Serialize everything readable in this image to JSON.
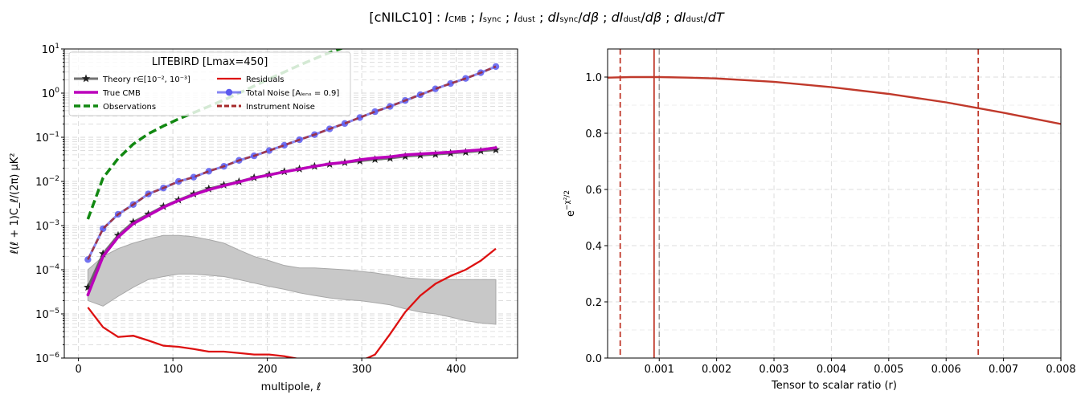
{
  "figure": {
    "suptitle": "[cNILC10] : I_CMB ; I_sync ; I_dust ; dI_sync/dβ ; dI_dust/dβ ; dI_dust/dT"
  },
  "chart_data": [
    {
      "type": "line",
      "yscale": "log",
      "xlabel": "multipole, ℓ",
      "ylabel": "ℓ(ℓ + 1)C_ℓ/(2π) μK²",
      "xlim": [
        -15,
        465
      ],
      "ylim": [
        1e-06,
        10
      ],
      "x_ticks": [
        0,
        100,
        200,
        300,
        400
      ],
      "y_tick_labels": [
        "10^-6",
        "10^-5",
        "10^-4",
        "10^-3",
        "10^-2",
        "10^-1",
        "10^0",
        "10^1"
      ],
      "grid": true,
      "legend": {
        "title": "LITEBIRD [Lmax=450]",
        "placement": "upper-left",
        "columns": 2
      },
      "series": [
        {
          "name": "Observations",
          "color": "#118811",
          "style": "dashed",
          "x": [
            10,
            26,
            42,
            58,
            74,
            90,
            106,
            122,
            138,
            154,
            170,
            186,
            202,
            218,
            234,
            250,
            266,
            282,
            290
          ],
          "y": [
            0.0014,
            0.012,
            0.033,
            0.07,
            0.12,
            0.18,
            0.26,
            0.36,
            0.5,
            0.7,
            1.0,
            1.45,
            2.1,
            3.0,
            4.3,
            6.0,
            8.3,
            11,
            12
          ]
        },
        {
          "name": "Total Noise [A_lens = 0.9]",
          "color": "#5555ee",
          "style": "solid-marker",
          "x": [
            10,
            26,
            42,
            58,
            74,
            90,
            106,
            122,
            138,
            154,
            170,
            186,
            202,
            218,
            234,
            250,
            266,
            282,
            298,
            314,
            330,
            346,
            362,
            378,
            394,
            410,
            426,
            442
          ],
          "y": [
            0.00017,
            0.00085,
            0.0018,
            0.003,
            0.0052,
            0.0071,
            0.01,
            0.0125,
            0.017,
            0.022,
            0.03,
            0.038,
            0.05,
            0.066,
            0.088,
            0.115,
            0.155,
            0.205,
            0.28,
            0.38,
            0.5,
            0.68,
            0.92,
            1.25,
            1.65,
            2.15,
            2.9,
            4.0
          ]
        },
        {
          "name": "Instrument Noise",
          "color": "#a52a2a",
          "style": "dashed",
          "x": [
            10,
            26,
            42,
            58,
            74,
            90,
            106,
            122,
            138,
            154,
            170,
            186,
            202,
            218,
            234,
            250,
            266,
            282,
            298,
            314,
            330,
            346,
            362,
            378,
            394,
            410,
            426,
            442
          ],
          "y": [
            0.00017,
            0.00085,
            0.0018,
            0.003,
            0.0052,
            0.0071,
            0.01,
            0.0125,
            0.017,
            0.022,
            0.03,
            0.038,
            0.05,
            0.066,
            0.088,
            0.115,
            0.155,
            0.205,
            0.28,
            0.38,
            0.5,
            0.68,
            0.92,
            1.25,
            1.65,
            2.15,
            2.9,
            4.0
          ]
        },
        {
          "name": "True CMB",
          "color": "#bb00bb",
          "style": "solid-thick",
          "x": [
            10,
            26,
            42,
            58,
            74,
            90,
            106,
            122,
            138,
            154,
            170,
            186,
            202,
            218,
            234,
            250,
            266,
            282,
            298,
            314,
            330,
            346,
            362,
            378,
            394,
            410,
            426,
            442
          ],
          "y": [
            2.7e-05,
            0.0002,
            0.00055,
            0.0011,
            0.0017,
            0.0026,
            0.0037,
            0.005,
            0.0065,
            0.008,
            0.0097,
            0.012,
            0.014,
            0.0165,
            0.019,
            0.022,
            0.025,
            0.027,
            0.031,
            0.034,
            0.036,
            0.04,
            0.042,
            0.044,
            0.046,
            0.049,
            0.052,
            0.058
          ]
        },
        {
          "name": "Theory r∈[10^-2, 10^-3]",
          "color": "#222222",
          "style": "star-marker",
          "x": [
            10,
            26,
            42,
            58,
            74,
            90,
            106,
            122,
            138,
            154,
            170,
            186,
            202,
            218,
            234,
            250,
            266,
            282,
            298,
            314,
            330,
            346,
            362,
            378,
            394,
            410,
            426,
            442
          ],
          "y": [
            4e-05,
            0.00023,
            0.0006,
            0.0012,
            0.0018,
            0.0027,
            0.0038,
            0.0052,
            0.0068,
            0.0083,
            0.0099,
            0.0122,
            0.0142,
            0.0167,
            0.0192,
            0.022,
            0.0245,
            0.0268,
            0.029,
            0.0315,
            0.0335,
            0.037,
            0.039,
            0.041,
            0.0435,
            0.046,
            0.049,
            0.052
          ]
        },
        {
          "name": "Residuals",
          "color": "#dd1111",
          "style": "solid",
          "x": [
            10,
            26,
            42,
            58,
            74,
            90,
            106,
            122,
            138,
            154,
            170,
            186,
            202,
            218,
            234,
            240,
            260,
            280,
            300,
            306,
            314,
            330,
            346,
            362,
            378,
            394,
            410,
            426,
            442
          ],
          "y": [
            1.4e-05,
            5e-06,
            3e-06,
            3.2e-06,
            2.5e-06,
            1.9e-06,
            1.8e-06,
            1.6e-06,
            1.4e-06,
            1.4e-06,
            1.3e-06,
            1.2e-06,
            1.2e-06,
            1.1e-06,
            9.5e-07,
            9e-07,
            8e-07,
            8e-07,
            9e-07,
            1e-06,
            1.2e-06,
            3.5e-06,
            1.1e-05,
            2.6e-05,
            4.8e-05,
            7.2e-05,
            0.0001,
            0.00016,
            0.0003
          ]
        }
      ],
      "band": {
        "color": "#c8c8c8",
        "x": [
          10,
          26,
          42,
          58,
          74,
          90,
          106,
          122,
          138,
          154,
          170,
          186,
          202,
          218,
          234,
          250,
          266,
          282,
          298,
          314,
          330,
          346,
          362,
          378,
          394,
          410,
          426,
          442
        ],
        "upper": [
          0.0001,
          0.0002,
          0.0003,
          0.0004,
          0.0005,
          0.0006,
          0.0006,
          0.00056,
          0.00048,
          0.0004,
          0.00028,
          0.0002,
          0.00016,
          0.000125,
          0.00011,
          0.00011,
          0.000105,
          0.0001,
          9.2e-05,
          8.5e-05,
          7.5e-05,
          6.6e-05,
          6.2e-05,
          6e-05,
          6e-05,
          6e-05,
          6e-05,
          6e-05
        ],
        "lower": [
          2e-05,
          1.5e-05,
          2.5e-05,
          4e-05,
          6e-05,
          7e-05,
          8e-05,
          8e-05,
          7.5e-05,
          7e-05,
          6e-05,
          5e-05,
          4.2e-05,
          3.6e-05,
          3e-05,
          2.6e-05,
          2.3e-05,
          2.1e-05,
          2e-05,
          1.8e-05,
          1.6e-05,
          1.3e-05,
          1.1e-05,
          1e-05,
          8.5e-06,
          7e-06,
          6.2e-06,
          5.8e-06
        ]
      }
    },
    {
      "type": "line",
      "xlabel": "Tensor to scalar ratio (r)",
      "ylabel": "e^{-χ²/2}",
      "xlim": [
        0.0001,
        0.008
      ],
      "ylim": [
        0.0,
        1.1
      ],
      "x_ticks": [
        "0.001",
        "0.002",
        "0.003",
        "0.004",
        "0.005",
        "0.006",
        "0.007",
        "0.008"
      ],
      "y_ticks": [
        "0.0",
        "0.2",
        "0.4",
        "0.6",
        "0.8",
        "1.0"
      ],
      "grid": true,
      "series": [
        {
          "color": "#c0392b",
          "x": [
            0.0001,
            0.0005,
            0.001,
            0.0015,
            0.002,
            0.003,
            0.004,
            0.005,
            0.006,
            0.007,
            0.008
          ],
          "y": [
            0.998,
            1.0,
            1.0,
            0.998,
            0.995,
            0.983,
            0.964,
            0.94,
            0.91,
            0.873,
            0.833
          ]
        }
      ],
      "vlines": [
        {
          "x": 0.00091,
          "color": "#c0392b",
          "style": "solid"
        },
        {
          "x": 0.00032,
          "color": "#c0392b",
          "style": "dashed"
        },
        {
          "x": 0.00656,
          "color": "#c0392b",
          "style": "dashed"
        },
        {
          "x": 0.001,
          "color": "#999999",
          "style": "dashed"
        }
      ]
    }
  ]
}
